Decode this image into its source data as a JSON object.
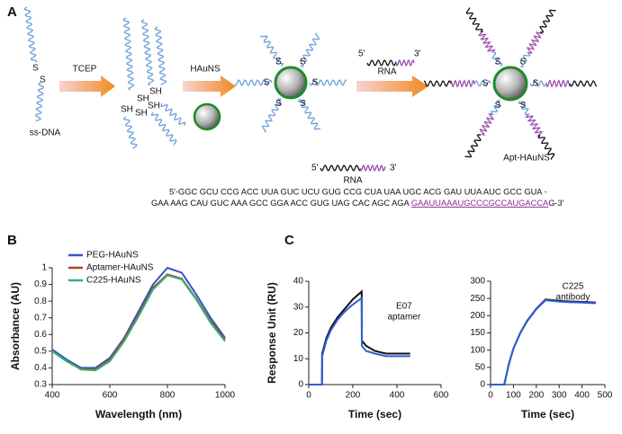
{
  "panel_labels": [
    "A",
    "B",
    "C"
  ],
  "schematic": {
    "ds_labels": [
      "S",
      "S"
    ],
    "ss_dna_label": "ss-DNA",
    "tcep_label": "TCEP",
    "sh_labels": [
      "SH",
      "SH",
      "SH",
      "SH",
      "SH"
    ],
    "hauns_label": "HAuNS",
    "np_s_labels": [
      "S",
      "S",
      "S",
      "S",
      "S",
      "S"
    ],
    "rna_top": {
      "five": "5'",
      "three": "3'",
      "label": "RNA"
    },
    "apt_s_labels": [
      "S",
      "S",
      "S",
      "S",
      "S",
      "S"
    ],
    "apt_label": "Apt-HAuNS",
    "rna_mid": {
      "five": "5'",
      "three": "3'",
      "label": "RNA"
    },
    "sequence": {
      "line1": "5'-GGC GCU CCG ACC UUA GUC UCU GUG CCG CUA UAA UGC ACG GAU UUA AUC GCC GUA -",
      "line2_start": "GAA AAG CAU GUC AAA GCC GGA ACC GUG UAG CAC AGC AGA ",
      "line2_underlined": "GAAUUAAAUGCCCGCCAUGACCA",
      "line2_end": "G-3'"
    }
  },
  "chart_data": [
    {
      "type": "line",
      "xlabel": "Wavelength  (nm)",
      "ylabel": "Absorbance (AU)",
      "x": [
        400,
        450,
        500,
        550,
        600,
        650,
        700,
        750,
        800,
        850,
        900,
        950,
        1000
      ],
      "series": [
        {
          "name": "PEG-HAuNS",
          "color": "#2f56c4",
          "values": [
            0.51,
            0.45,
            0.4,
            0.4,
            0.46,
            0.58,
            0.74,
            0.9,
            1.0,
            0.97,
            0.84,
            0.7,
            0.58
          ]
        },
        {
          "name": "Aptamer-HAuNS",
          "color": "#b8401f",
          "values": [
            0.5,
            0.44,
            0.395,
            0.39,
            0.45,
            0.57,
            0.72,
            0.88,
            0.96,
            0.935,
            0.815,
            0.68,
            0.57
          ]
        },
        {
          "name": "C225-HAuNS",
          "color": "#2eb37a",
          "values": [
            0.5,
            0.44,
            0.39,
            0.385,
            0.44,
            0.56,
            0.71,
            0.87,
            0.955,
            0.93,
            0.81,
            0.67,
            0.56
          ]
        }
      ],
      "xlim": [
        400,
        1000
      ],
      "xticks": [
        400,
        600,
        800,
        1000
      ],
      "ylim": [
        0.3,
        1
      ],
      "yticks": [
        0.3,
        0.4,
        0.5,
        0.6,
        0.7,
        0.8,
        0.9,
        1
      ],
      "legend": "top-left"
    },
    {
      "type": "line",
      "xlabel": "Time  (sec)",
      "ylabel": "Response Unit (RU)",
      "annotations": [
        "E07",
        "aptamer"
      ],
      "x": [
        0,
        60,
        61,
        80,
        100,
        130,
        160,
        200,
        240,
        241,
        260,
        300,
        350,
        400,
        460
      ],
      "series": [
        {
          "color": "#111111",
          "values": [
            0,
            0,
            12,
            18,
            22,
            26,
            29,
            33,
            36,
            17,
            15,
            13,
            12,
            12,
            12
          ]
        },
        {
          "color": "#2f5fd8",
          "values": [
            0,
            0,
            11,
            17,
            21,
            25,
            28,
            31,
            33.5,
            15,
            13,
            12,
            11,
            11,
            11
          ]
        }
      ],
      "xlim": [
        0,
        600
      ],
      "xticks": [
        0,
        200,
        400,
        600
      ],
      "ylim": [
        0,
        40
      ],
      "yticks": [
        0,
        10,
        20,
        30,
        40
      ]
    },
    {
      "type": "line",
      "xlabel": "Time  (sec)",
      "annotations": [
        "C225",
        "antibody"
      ],
      "x": [
        0,
        60,
        80,
        100,
        130,
        160,
        200,
        240,
        300,
        350,
        400,
        460
      ],
      "series": [
        {
          "color": "#111111",
          "values": [
            0,
            0,
            60,
            105,
            150,
            185,
            220,
            247,
            243,
            241,
            240,
            238
          ]
        },
        {
          "color": "#2f5fd8",
          "values": [
            0,
            0,
            59,
            104,
            149,
            184,
            219,
            245,
            241,
            239,
            238,
            236
          ]
        }
      ],
      "xlim": [
        0,
        500
      ],
      "xticks": [
        0,
        100,
        200,
        300,
        400,
        500
      ],
      "ylim": [
        0,
        300
      ],
      "yticks": [
        0,
        50,
        100,
        150,
        200,
        250,
        300
      ]
    }
  ]
}
